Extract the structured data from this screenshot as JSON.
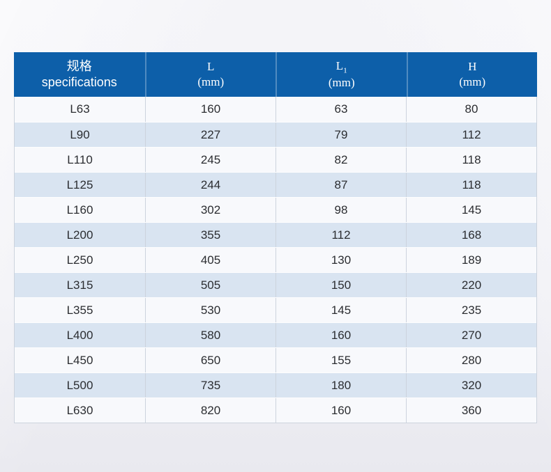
{
  "header": {
    "spec_zh": "规格",
    "spec_en": "specifications",
    "l_label": "L",
    "l1_base": "L",
    "l1_sub": "1",
    "h_label": "H",
    "unit": "(mm)"
  },
  "rows": [
    {
      "spec": "L63",
      "l": "160",
      "l1": "63",
      "h": "80"
    },
    {
      "spec": "L90",
      "l": "227",
      "l1": "79",
      "h": "112"
    },
    {
      "spec": "L110",
      "l": "245",
      "l1": "82",
      "h": "118"
    },
    {
      "spec": "L125",
      "l": "244",
      "l1": "87",
      "h": "118"
    },
    {
      "spec": "L160",
      "l": "302",
      "l1": "98",
      "h": "145"
    },
    {
      "spec": "L200",
      "l": "355",
      "l1": "112",
      "h": "168"
    },
    {
      "spec": "L250",
      "l": "405",
      "l1": "130",
      "h": "189"
    },
    {
      "spec": "L315",
      "l": "505",
      "l1": "150",
      "h": "220"
    },
    {
      "spec": "L355",
      "l": "530",
      "l1": "145",
      "h": "235"
    },
    {
      "spec": "L400",
      "l": "580",
      "l1": "160",
      "h": "270"
    },
    {
      "spec": "L450",
      "l": "650",
      "l1": "155",
      "h": "280"
    },
    {
      "spec": "L500",
      "l": "735",
      "l1": "180",
      "h": "320"
    },
    {
      "spec": "L630",
      "l": "820",
      "l1": "160",
      "h": "360"
    }
  ],
  "colors": {
    "header_bg": "#0d5fa9",
    "header_text": "#ffffff",
    "row_light": "#f8f9fc",
    "row_blue": "#d9e4f1",
    "grid_line": "#ccd3dd",
    "cell_text": "#2b2d31",
    "page_bg": "#f1f1f6"
  },
  "chart_data": {
    "type": "table",
    "title": "规格 specifications table",
    "columns": [
      "规格 specifications",
      "L (mm)",
      "L1 (mm)",
      "H (mm)"
    ],
    "rows": [
      [
        "L63",
        160,
        63,
        80
      ],
      [
        "L90",
        227,
        79,
        112
      ],
      [
        "L110",
        245,
        82,
        118
      ],
      [
        "L125",
        244,
        87,
        118
      ],
      [
        "L160",
        302,
        98,
        145
      ],
      [
        "L200",
        355,
        112,
        168
      ],
      [
        "L250",
        405,
        130,
        189
      ],
      [
        "L315",
        505,
        150,
        220
      ],
      [
        "L355",
        530,
        145,
        235
      ],
      [
        "L400",
        580,
        160,
        270
      ],
      [
        "L450",
        650,
        155,
        280
      ],
      [
        "L500",
        735,
        180,
        320
      ],
      [
        "L630",
        820,
        160,
        360
      ]
    ],
    "layout": "header row blue (#0d5fa9), data rows alternate #f8f9fc / #d9e4f1, 4 equal columns, all text centered"
  }
}
